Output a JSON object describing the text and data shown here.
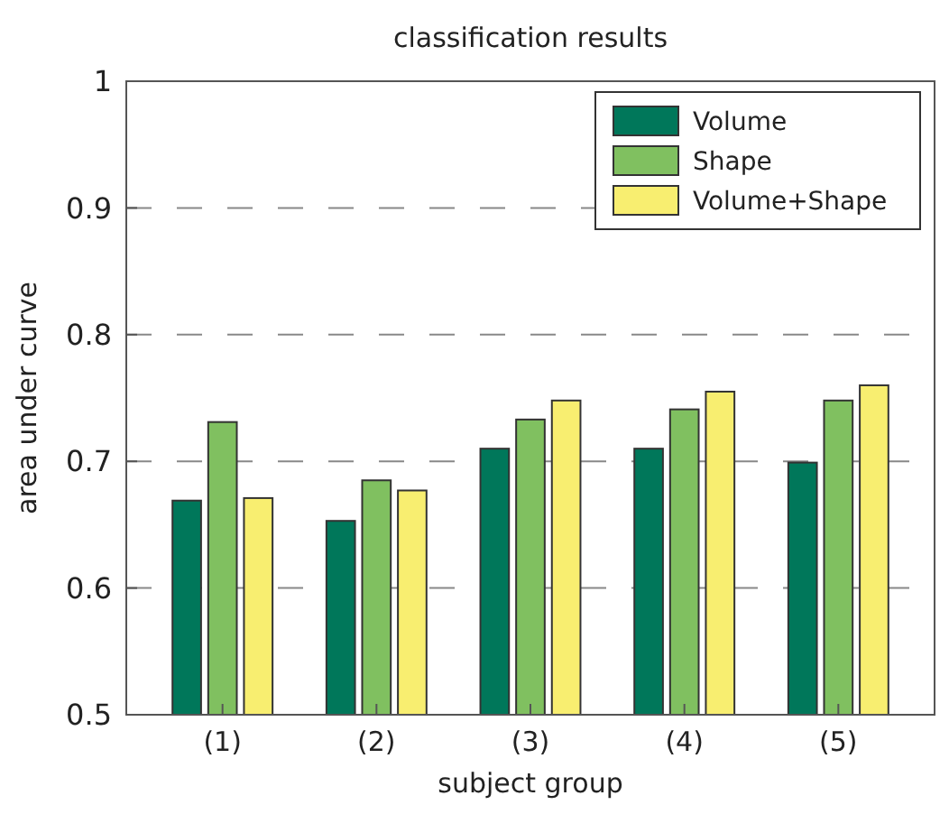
{
  "chart_data": {
    "type": "bar",
    "title": "classification results",
    "xlabel": "subject group",
    "ylabel": "area under curve",
    "categories": [
      "(1)",
      "(2)",
      "(3)",
      "(4)",
      "(5)"
    ],
    "series": [
      {
        "name": "Volume",
        "color": "#00775a",
        "values": [
          0.669,
          0.653,
          0.71,
          0.71,
          0.699
        ]
      },
      {
        "name": "Shape",
        "color": "#80c060",
        "values": [
          0.731,
          0.685,
          0.733,
          0.741,
          0.748
        ]
      },
      {
        "name": "Volume+Shape",
        "color": "#f8ee70",
        "values": [
          0.671,
          0.677,
          0.748,
          0.755,
          0.76
        ]
      }
    ],
    "ylim": [
      0.5,
      1
    ],
    "yticks": [
      0.5,
      0.6,
      0.7,
      0.8,
      0.9,
      1
    ],
    "grid": "y",
    "legend": "top right"
  }
}
